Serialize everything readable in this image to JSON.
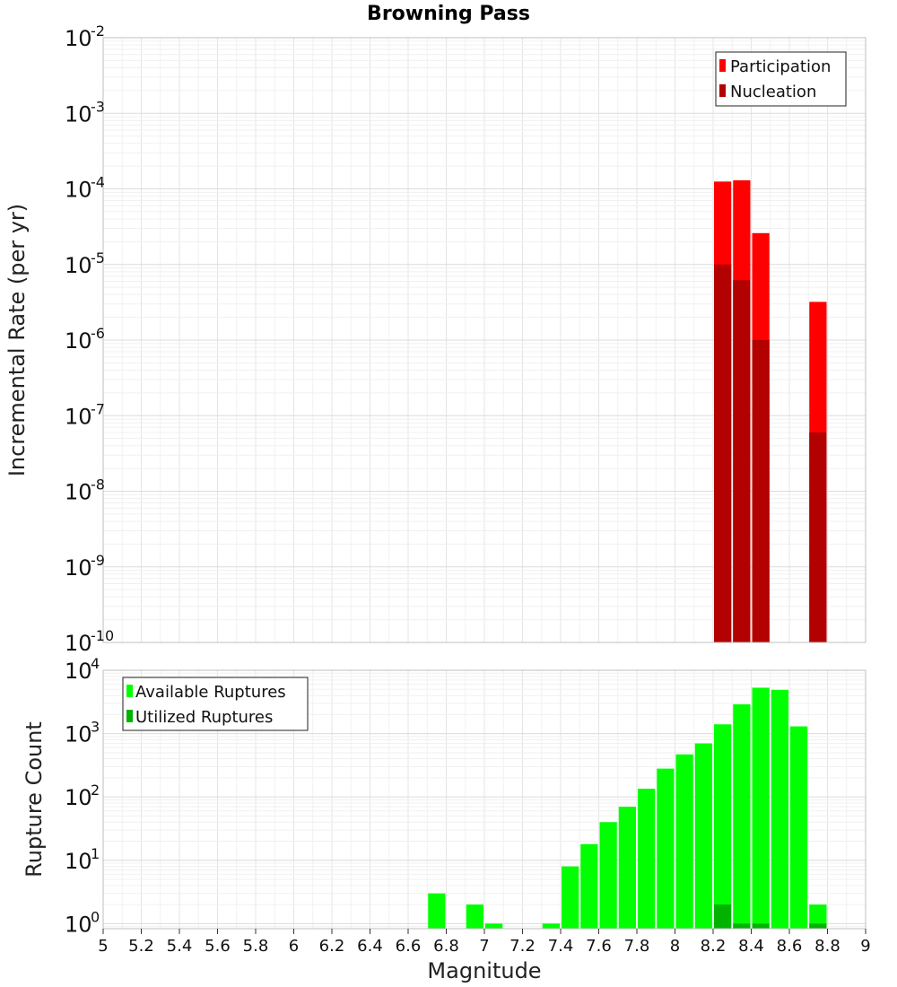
{
  "chart_data": [
    {
      "type": "bar",
      "title": "Browning Pass",
      "xlabel": "",
      "ylabel": "Incremental Rate (per yr)",
      "y_scale": "log",
      "ylim_exp": [
        -10,
        -2
      ],
      "y_tick_base": "10",
      "y_tick_exponents": [
        "-10",
        "-9",
        "-8",
        "-7",
        "-6",
        "-5",
        "-4",
        "-3",
        "-2"
      ],
      "xlim": [
        5,
        9
      ],
      "bar_width": 0.1,
      "grid": true,
      "legend_position": "top-right",
      "series": [
        {
          "name": "Participation",
          "color": "#ff0000",
          "points": [
            {
              "x": 8.25,
              "y": 0.000125
            },
            {
              "x": 8.35,
              "y": 0.00013
            },
            {
              "x": 8.45,
              "y": 2.6e-05
            },
            {
              "x": 8.75,
              "y": 3.2e-06
            }
          ]
        },
        {
          "name": "Nucleation",
          "color": "#b30000",
          "points": [
            {
              "x": 8.25,
              "y": 1e-05
            },
            {
              "x": 8.35,
              "y": 6.2e-06
            },
            {
              "x": 8.45,
              "y": 1e-06
            },
            {
              "x": 8.75,
              "y": 6e-08
            }
          ]
        }
      ]
    },
    {
      "type": "bar",
      "title": "",
      "xlabel": "Magnitude",
      "ylabel": "Rupture Count",
      "y_scale": "log",
      "ylim_exp": [
        -0.08,
        4
      ],
      "y_tick_base": "10",
      "y_tick_exponents": [
        "0",
        "1",
        "2",
        "3",
        "4"
      ],
      "xlim": [
        5,
        9
      ],
      "x_ticks": [
        "5",
        "5.2",
        "5.4",
        "5.6",
        "5.8",
        "6",
        "6.2",
        "6.4",
        "6.6",
        "6.8",
        "7",
        "7.2",
        "7.4",
        "7.6",
        "7.8",
        "8",
        "8.2",
        "8.4",
        "8.6",
        "8.8",
        "9"
      ],
      "bar_width": 0.1,
      "grid": true,
      "legend_position": "top-left",
      "series": [
        {
          "name": "Available Ruptures",
          "color": "#00ff00",
          "points": [
            {
              "x": 6.75,
              "y": 3
            },
            {
              "x": 6.95,
              "y": 2
            },
            {
              "x": 7.05,
              "y": 1
            },
            {
              "x": 7.35,
              "y": 1
            },
            {
              "x": 7.45,
              "y": 8
            },
            {
              "x": 7.55,
              "y": 18
            },
            {
              "x": 7.65,
              "y": 40
            },
            {
              "x": 7.75,
              "y": 70
            },
            {
              "x": 7.85,
              "y": 135
            },
            {
              "x": 7.95,
              "y": 280
            },
            {
              "x": 8.05,
              "y": 470
            },
            {
              "x": 8.15,
              "y": 700
            },
            {
              "x": 8.25,
              "y": 1400
            },
            {
              "x": 8.35,
              "y": 2900
            },
            {
              "x": 8.45,
              "y": 5300
            },
            {
              "x": 8.55,
              "y": 4900
            },
            {
              "x": 8.65,
              "y": 1300
            },
            {
              "x": 8.75,
              "y": 2
            }
          ]
        },
        {
          "name": "Utilized Ruptures",
          "color": "#00b300",
          "points": [
            {
              "x": 8.25,
              "y": 2
            },
            {
              "x": 8.35,
              "y": 1
            },
            {
              "x": 8.45,
              "y": 1
            },
            {
              "x": 8.75,
              "y": 1
            }
          ]
        }
      ]
    }
  ]
}
